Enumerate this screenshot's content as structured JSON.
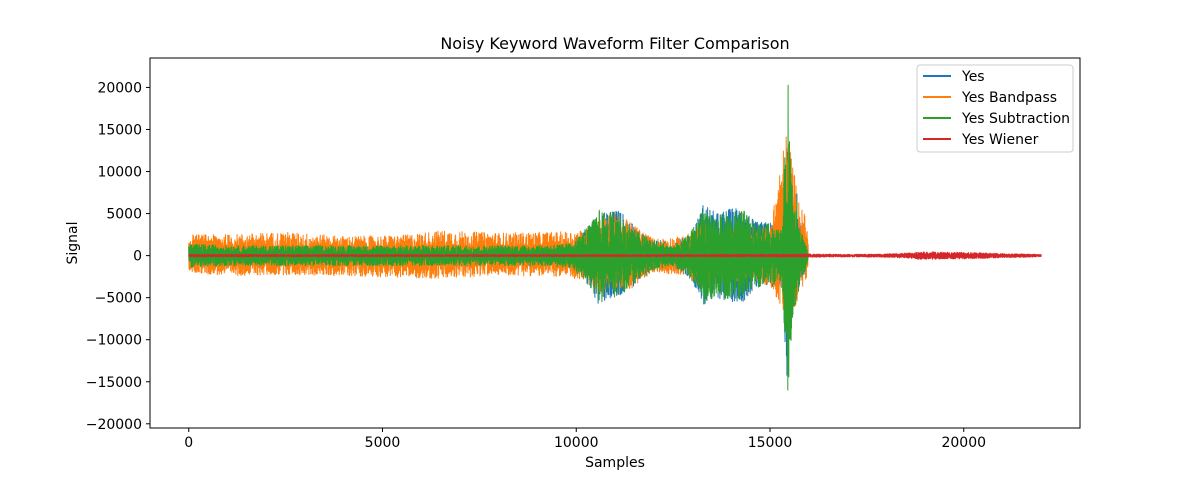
{
  "chart_data": {
    "type": "line",
    "title": "Noisy Keyword Waveform Filter Comparison",
    "xlabel": "Samples",
    "ylabel": "Signal",
    "xlim": [
      -1000,
      23000
    ],
    "ylim": [
      -20500,
      23500
    ],
    "xticks": [
      0,
      5000,
      10000,
      15000,
      20000
    ],
    "yticks": [
      -20000,
      -15000,
      -10000,
      -5000,
      0,
      5000,
      10000,
      15000,
      20000
    ],
    "xtick_labels": [
      "0",
      "5000",
      "10000",
      "15000",
      "20000"
    ],
    "ytick_labels": [
      "−20000",
      "−15000",
      "−10000",
      "−5000",
      "0",
      "5000",
      "10000",
      "15000",
      "20000"
    ],
    "grid": false,
    "legend_position": "top-right",
    "series": [
      {
        "name": "Yes",
        "color": "#1f77b4",
        "envelope": {
          "x": [
            0,
            1000,
            3000,
            5000,
            7000,
            9000,
            9800,
            10100,
            10400,
            10600,
            10800,
            11000,
            11300,
            11600,
            12000,
            12500,
            12900,
            13100,
            13300,
            13600,
            13900,
            14300,
            14600,
            15000,
            15300,
            15450,
            15520,
            15600,
            15700,
            15800,
            15900,
            16000
          ],
          "upper": [
            1500,
            1200,
            1200,
            1200,
            1300,
            1300,
            1500,
            2500,
            4000,
            5800,
            5000,
            6000,
            4500,
            3000,
            2000,
            1500,
            2500,
            4000,
            6500,
            5000,
            5500,
            6000,
            4000,
            4000,
            3500,
            14000,
            12000,
            8000,
            7500,
            3000,
            2500,
            0
          ],
          "lower": [
            -1500,
            -1200,
            -1200,
            -1200,
            -1300,
            -1300,
            -1500,
            -2500,
            -4000,
            -6500,
            -5000,
            -5500,
            -4500,
            -3000,
            -2000,
            -1500,
            -2500,
            -4000,
            -6000,
            -5000,
            -5500,
            -5500,
            -4000,
            -4000,
            -3500,
            -16000,
            -10000,
            -7000,
            -5000,
            -3000,
            -2500,
            0
          ]
        }
      },
      {
        "name": "Yes Bandpass",
        "color": "#ff7f0e",
        "envelope": {
          "x": [
            0,
            1000,
            2500,
            4000,
            5500,
            6500,
            8000,
            9500,
            10200,
            10600,
            11000,
            11400,
            12000,
            12800,
            13300,
            13700,
            14200,
            15000,
            15450,
            15550,
            15650,
            15800,
            15950,
            16000
          ],
          "upper": [
            2500,
            2500,
            2800,
            2300,
            2400,
            3000,
            2700,
            2800,
            3000,
            4500,
            5000,
            4000,
            2000,
            2300,
            4000,
            3000,
            3500,
            3500,
            15500,
            13000,
            9000,
            6000,
            4200,
            0
          ],
          "lower": [
            -2000,
            -2400,
            -2300,
            -2400,
            -2600,
            -2800,
            -2300,
            -2500,
            -3000,
            -4500,
            -4000,
            -4000,
            -2000,
            -2300,
            -4000,
            -3000,
            -3000,
            -3500,
            -8000,
            -7500,
            -6500,
            -4000,
            -2800,
            0
          ]
        }
      },
      {
        "name": "Yes Subtraction",
        "color": "#2ca02c",
        "envelope": {
          "x": [
            0,
            1000,
            3000,
            5000,
            7000,
            9000,
            9800,
            10100,
            10400,
            10600,
            10800,
            11000,
            11300,
            11600,
            12000,
            12500,
            12900,
            13100,
            13300,
            13600,
            13900,
            14300,
            14600,
            15000,
            15300,
            15480,
            15520,
            15600,
            15700,
            15800,
            15900,
            16000
          ],
          "upper": [
            1400,
            1200,
            1200,
            1200,
            1200,
            1200,
            1400,
            2400,
            4000,
            5500,
            4800,
            5500,
            4000,
            2800,
            1800,
            1200,
            2400,
            4000,
            6000,
            4800,
            5000,
            5500,
            3800,
            3800,
            3000,
            22000,
            14000,
            8000,
            7500,
            3000,
            2000,
            0
          ],
          "lower": [
            -1400,
            -1200,
            -1200,
            -1200,
            -1200,
            -1200,
            -1400,
            -2400,
            -4000,
            -6000,
            -4800,
            -5000,
            -4200,
            -2800,
            -1800,
            -1200,
            -2400,
            -4000,
            -5800,
            -4800,
            -5200,
            -5200,
            -3800,
            -3800,
            -3000,
            -19000,
            -12000,
            -7000,
            -5000,
            -3000,
            -2000,
            0
          ]
        }
      },
      {
        "name": "Yes Wiener",
        "color": "#d62728",
        "envelope": {
          "x": [
            0,
            5000,
            10000,
            15000,
            16000,
            17000,
            18000,
            18500,
            19000,
            19500,
            20000,
            20500,
            21000,
            21500,
            22000
          ],
          "upper": [
            150,
            120,
            120,
            150,
            200,
            150,
            200,
            300,
            500,
            400,
            400,
            350,
            250,
            200,
            150
          ],
          "lower": [
            -150,
            -120,
            -120,
            -150,
            -200,
            -150,
            -200,
            -300,
            -500,
            -400,
            -400,
            -350,
            -250,
            -200,
            -150
          ]
        }
      }
    ]
  }
}
